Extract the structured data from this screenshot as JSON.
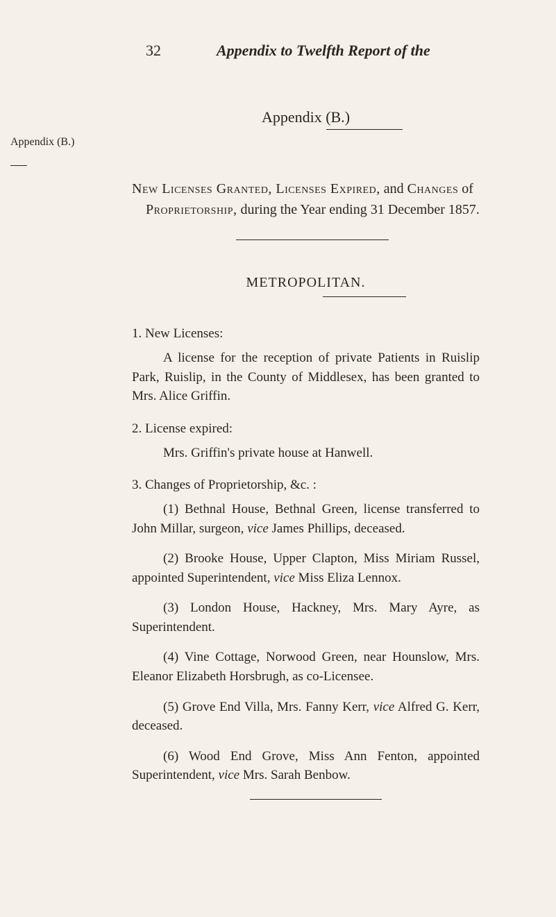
{
  "page": {
    "number": "32",
    "running_head": "Appendix to Twelfth Report of the"
  },
  "margin_note": {
    "text": "Appendix (B.)"
  },
  "title": "Appendix (B.)",
  "intro": {
    "line1_caps1": "New Licenses Granted, Licenses Expired,",
    "line1_rest": " and ",
    "line1_caps2": "Changes",
    "line1_end": " of",
    "line2_caps": "Proprietorship,",
    "line2_rest": " during the Year ending 31 December 1857."
  },
  "section": "METROPOLITAN.",
  "items": {
    "one": {
      "head": "1. New Licenses:",
      "body_pre": "A license for the reception of private Patients in Ruislip Park, Ruislip, in the County of Middlesex, has been granted to Mrs. Alice Griffin."
    },
    "two": {
      "head": "2. License expired:",
      "body": "Mrs. Griffin's private house at Hanwell."
    },
    "three": {
      "head": "3. Changes of Proprietorship, &c. :",
      "sub1_num": "(1) ",
      "sub1_a": "Bethnal House, Bethnal Green, license transferred to John Millar, surgeon, ",
      "sub1_vice": "vice",
      "sub1_b": " James Phillips, deceased.",
      "sub2_num": "(2) ",
      "sub2_a": "Brooke House, Upper Clapton, Miss Miriam Russel, appointed Superintendent, ",
      "sub2_vice": "vice",
      "sub2_b": " Miss Eliza Lennox.",
      "sub3_num": "(3) ",
      "sub3_a": "London House, Hackney, Mrs. Mary Ayre, as Superintendent.",
      "sub4_num": "(4) ",
      "sub4_a": "Vine Cottage, Norwood Green, near Hounslow, Mrs. Eleanor Elizabeth Horsbrugh, as co-Licensee.",
      "sub5_num": "(5) ",
      "sub5_a": "Grove End Villa, Mrs. Fanny Kerr, ",
      "sub5_vice": "vice",
      "sub5_b": " Alfred G. Kerr, deceased.",
      "sub6_num": "(6) ",
      "sub6_a": "Wood End Grove, Miss Ann Fenton, appointed Superintendent, ",
      "sub6_vice": "vice",
      "sub6_b": " Mrs. Sarah Benbow."
    }
  },
  "colors": {
    "background": "#f5f1e8",
    "text": "#2a2520"
  }
}
